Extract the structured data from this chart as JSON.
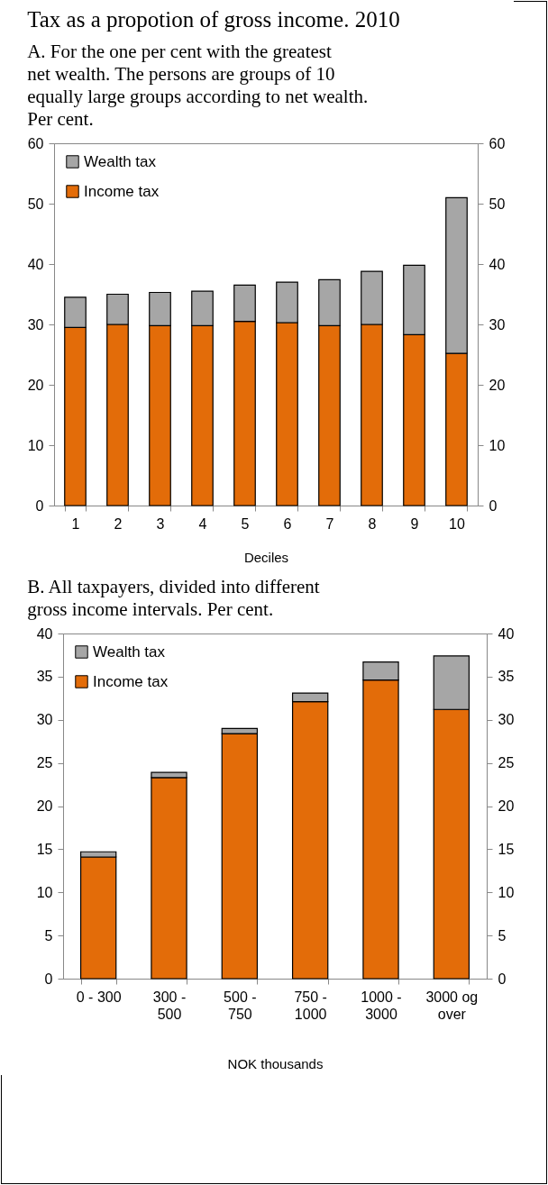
{
  "chart_data": [
    {
      "type": "bar",
      "title": "Tax as a propotion of gross income. 2010",
      "subtitle": "A.   For the one per cent with the greatest net wealth.  The persons are groups of 10 equally large groups according to net wealth. Per cent.",
      "xlabel": "Deciles",
      "categories": [
        "1",
        "2",
        "3",
        "4",
        "5",
        "6",
        "7",
        "8",
        "9",
        "10"
      ],
      "stacked": true,
      "legend": "top left",
      "grid": false,
      "ylim": [
        0,
        60
      ],
      "yticks": [
        0,
        10,
        20,
        30,
        40,
        50,
        60
      ],
      "y2lim": [
        0,
        60
      ],
      "y2ticks": [
        0,
        10,
        20,
        30,
        40,
        50,
        60
      ],
      "series": [
        {
          "name": "Income tax",
          "color": "#e36c09",
          "values": [
            29.5,
            30.0,
            29.8,
            29.8,
            30.5,
            30.3,
            29.8,
            30.0,
            28.3,
            25.2
          ]
        },
        {
          "name": "Wealth tax",
          "color": "#a6a6a6",
          "values": [
            5.0,
            5.0,
            5.5,
            5.7,
            6.0,
            6.7,
            7.6,
            8.8,
            11.5,
            25.8
          ]
        }
      ]
    },
    {
      "type": "bar",
      "title": "B.   All taxpayers, divided into different gross income intervals. Per cent.",
      "xlabel": "NOK thousands",
      "categories": [
        "0 - 300",
        "300 - 500",
        "500 - 750",
        "750 - 1000",
        "1000 - 3000",
        "3000 og over"
      ],
      "stacked": true,
      "legend": "top left",
      "grid": false,
      "ylim": [
        0,
        40
      ],
      "yticks": [
        0,
        5,
        10,
        15,
        20,
        25,
        30,
        35,
        40
      ],
      "y2lim": [
        0,
        40
      ],
      "y2ticks": [
        0,
        5,
        10,
        15,
        20,
        25,
        30,
        35,
        40
      ],
      "series": [
        {
          "name": "Income tax",
          "color": "#e36c09",
          "values": [
            14.1,
            23.3,
            28.4,
            32.1,
            34.6,
            31.2
          ]
        },
        {
          "name": "Wealth tax",
          "color": "#a6a6a6",
          "values": [
            0.6,
            0.6,
            0.6,
            1.0,
            2.1,
            6.2
          ]
        }
      ]
    }
  ]
}
